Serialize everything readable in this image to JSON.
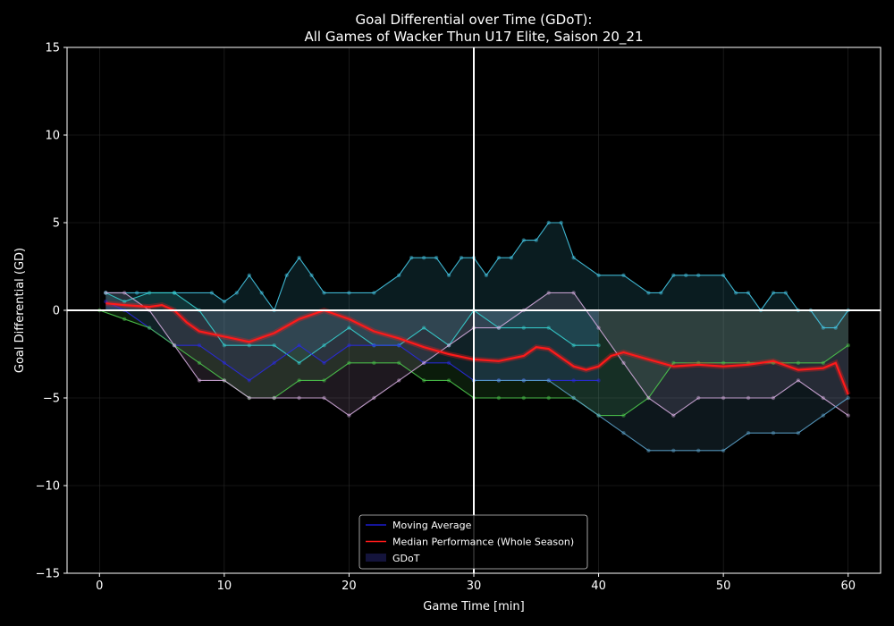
{
  "chart_data": {
    "type": "line",
    "title_line1": "Goal Differential over Time (GDoT):",
    "title_line2": "All Games of Wacker Thun U17 Elite, Saison 20_21",
    "xlabel": "Game Time [min]",
    "ylabel": "Goal Differential (GD)",
    "xlim": [
      -2.6,
      62.6
    ],
    "ylim": [
      -15,
      15
    ],
    "x_ticks": [
      0,
      10,
      20,
      30,
      40,
      50,
      60
    ],
    "y_ticks": [
      -15,
      -10,
      -5,
      0,
      5,
      10,
      15
    ],
    "x_tick_labels": [
      "0",
      "10",
      "20",
      "30",
      "40",
      "50",
      "60"
    ],
    "y_tick_labels": [
      "−15",
      "−10",
      "−5",
      "0",
      "5",
      "10",
      "15"
    ],
    "grid": true,
    "reference_lines": {
      "x": 30,
      "y": 0
    },
    "legend": {
      "placement": "lower-center",
      "entries": [
        {
          "label": "Moving Average",
          "color": "#1a1acc",
          "kind": "line"
        },
        {
          "label": "Median Performance (Whole Season)",
          "color": "#ff1a1a",
          "kind": "line"
        },
        {
          "label": "GDoT",
          "color": "#14143c",
          "kind": "patch"
        }
      ]
    },
    "games": [
      {
        "color": "#45c8e6",
        "x": [
          0.5,
          3,
          6,
          9,
          10,
          11,
          12,
          13,
          14,
          15,
          16,
          17,
          18,
          20,
          22,
          24,
          25,
          26,
          27,
          28,
          29,
          30,
          31,
          32,
          33,
          34,
          35,
          36,
          37,
          38,
          40,
          42,
          44,
          45,
          46,
          47,
          48,
          50,
          51,
          52,
          53,
          54,
          55,
          56,
          57,
          58,
          59,
          60
        ],
        "values": [
          1,
          1,
          1,
          1,
          0.5,
          1,
          2,
          1,
          0,
          2,
          3,
          2,
          1,
          1,
          1,
          2,
          3,
          3,
          3,
          2,
          3,
          3,
          2,
          3,
          3,
          4,
          4,
          5,
          5,
          3,
          2,
          2,
          1,
          1,
          2,
          2,
          2,
          2,
          1,
          1,
          0,
          1,
          1,
          0,
          0,
          -1,
          -1,
          0
        ]
      },
      {
        "color": "#36d0d0",
        "x": [
          0.5,
          2,
          4,
          6,
          8,
          10,
          12,
          14,
          16,
          18,
          20,
          22,
          24,
          26,
          28,
          30,
          32,
          34,
          36,
          38,
          40
        ],
        "values": [
          1,
          0.5,
          1,
          1,
          0,
          -2,
          -2,
          -2,
          -3,
          -2,
          -1,
          -2,
          -2,
          -1,
          -2,
          0,
          -1,
          -1,
          -1,
          -2,
          -2
        ]
      },
      {
        "color": "#2a2ae0",
        "x": [
          0.5,
          2,
          4,
          6,
          8,
          10,
          12,
          14,
          16,
          18,
          20,
          22,
          24,
          26,
          28,
          30,
          32,
          34,
          36,
          38,
          40
        ],
        "values": [
          0.5,
          0,
          -1,
          -2,
          -2,
          -3,
          -4,
          -3,
          -2,
          -3,
          -2,
          -2,
          -2,
          -3,
          -3,
          -4,
          -4,
          -4,
          -4,
          -4,
          -4
        ]
      },
      {
        "color": "#4cc84c",
        "x": [
          0,
          2,
          4,
          6,
          8,
          10,
          12,
          14,
          16,
          18,
          20,
          22,
          24,
          26,
          28,
          30,
          32,
          34,
          36,
          38,
          40,
          42,
          44,
          46,
          48,
          50,
          52,
          54,
          56,
          58,
          60
        ],
        "values": [
          0,
          -0.5,
          -1,
          -2,
          -3,
          -4,
          -5,
          -5,
          -4,
          -4,
          -3,
          -3,
          -3,
          -4,
          -4,
          -5,
          -5,
          -5,
          -5,
          -5,
          -6,
          -6,
          -5,
          -3,
          -3,
          -3,
          -3,
          -3,
          -3,
          -3,
          -2
        ]
      },
      {
        "color": "#d2aadc",
        "x": [
          0.5,
          2,
          4,
          6,
          8,
          10,
          12,
          14,
          16,
          18,
          20,
          22,
          24,
          26,
          28,
          30,
          32,
          34,
          36,
          38,
          40,
          42,
          44,
          46,
          48,
          50,
          52,
          54,
          56,
          58,
          60
        ],
        "values": [
          1,
          1,
          0,
          -2,
          -4,
          -4,
          -5,
          -5,
          -5,
          -5,
          -6,
          -5,
          -4,
          -3,
          -2,
          -1,
          -1,
          0,
          1,
          1,
          -1,
          -3,
          -5,
          -6,
          -5,
          -5,
          -5,
          -5,
          -4,
          -5,
          -6
        ]
      },
      {
        "color": "#5aa0c8",
        "x": [
          30,
          32,
          34,
          36,
          38,
          40,
          42,
          44,
          46,
          48,
          50,
          52,
          54,
          56,
          58,
          60
        ],
        "values": [
          -4,
          -4,
          -4,
          -4,
          -5,
          -6,
          -7,
          -8,
          -8,
          -8,
          -8,
          -7,
          -7,
          -7,
          -6,
          -5
        ]
      }
    ],
    "median_performance": {
      "color": "#ff1a1a",
      "x": [
        0.5,
        2,
        4,
        5,
        6,
        7,
        8,
        10,
        12,
        14,
        16,
        18,
        20,
        22,
        24,
        26,
        28,
        30,
        32,
        34,
        35,
        36,
        38,
        39,
        40,
        41,
        42,
        44,
        46,
        48,
        50,
        52,
        54,
        56,
        58,
        59,
        60
      ],
      "values": [
        0.4,
        0.3,
        0.2,
        0.3,
        0,
        -0.7,
        -1.2,
        -1.5,
        -1.8,
        -1.3,
        -0.5,
        0,
        -0.5,
        -1.2,
        -1.6,
        -2.1,
        -2.5,
        -2.8,
        -2.9,
        -2.6,
        -2.1,
        -2.2,
        -3.2,
        -3.4,
        -3.2,
        -2.6,
        -2.4,
        -2.8,
        -3.2,
        -3.1,
        -3.2,
        -3.1,
        -2.9,
        -3.4,
        -3.3,
        -3,
        -4.8
      ]
    }
  }
}
